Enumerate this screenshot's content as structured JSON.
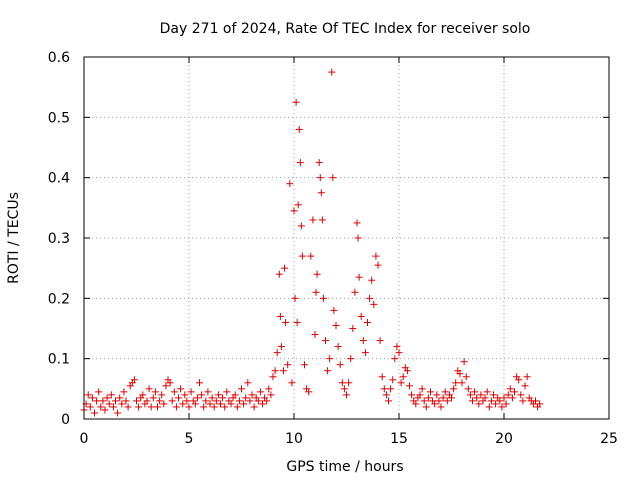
{
  "chart_data": {
    "type": "scatter",
    "title": "Day 271 of 2024, Rate Of TEC Index for receiver solo",
    "xlabel": "GPS time / hours",
    "ylabel": "ROTI / TECUs",
    "xlim": [
      0,
      25
    ],
    "ylim": [
      0,
      0.6
    ],
    "xticks": [
      0,
      5,
      10,
      15,
      20,
      25
    ],
    "yticks": [
      0,
      0.1,
      0.2,
      0.3,
      0.4,
      0.5,
      0.6
    ],
    "ytick_labels": [
      "0",
      "0.1",
      "0.2",
      "0.3",
      "0.4",
      "0.5",
      "0.6"
    ],
    "grid": true,
    "marker": "plus",
    "colors": {
      "series": "#e00000",
      "grid": "#a0a0a0",
      "axes": "#000000"
    },
    "series": [
      {
        "points": [
          [
            0.0,
            0.015
          ],
          [
            0.1,
            0.025
          ],
          [
            0.2,
            0.04
          ],
          [
            0.3,
            0.02
          ],
          [
            0.4,
            0.035
          ],
          [
            0.5,
            0.01
          ],
          [
            0.6,
            0.03
          ],
          [
            0.7,
            0.045
          ],
          [
            0.8,
            0.02
          ],
          [
            0.9,
            0.03
          ],
          [
            1.0,
            0.015
          ],
          [
            1.1,
            0.035
          ],
          [
            1.2,
            0.025
          ],
          [
            1.3,
            0.04
          ],
          [
            1.4,
            0.02
          ],
          [
            1.5,
            0.03
          ],
          [
            1.6,
            0.01
          ],
          [
            1.7,
            0.035
          ],
          [
            1.8,
            0.025
          ],
          [
            1.9,
            0.045
          ],
          [
            2.0,
            0.03
          ],
          [
            2.1,
            0.02
          ],
          [
            2.2,
            0.055
          ],
          [
            2.3,
            0.06
          ],
          [
            2.4,
            0.065
          ],
          [
            2.5,
            0.03
          ],
          [
            2.6,
            0.02
          ],
          [
            2.7,
            0.035
          ],
          [
            2.8,
            0.04
          ],
          [
            2.9,
            0.025
          ],
          [
            3.0,
            0.03
          ],
          [
            3.1,
            0.05
          ],
          [
            3.2,
            0.02
          ],
          [
            3.3,
            0.035
          ],
          [
            3.4,
            0.045
          ],
          [
            3.5,
            0.02
          ],
          [
            3.6,
            0.03
          ],
          [
            3.7,
            0.04
          ],
          [
            3.8,
            0.025
          ],
          [
            3.9,
            0.055
          ],
          [
            4.0,
            0.065
          ],
          [
            4.1,
            0.06
          ],
          [
            4.2,
            0.03
          ],
          [
            4.3,
            0.045
          ],
          [
            4.4,
            0.02
          ],
          [
            4.5,
            0.035
          ],
          [
            4.6,
            0.05
          ],
          [
            4.7,
            0.025
          ],
          [
            4.8,
            0.04
          ],
          [
            4.9,
            0.03
          ],
          [
            5.0,
            0.02
          ],
          [
            5.1,
            0.045
          ],
          [
            5.2,
            0.03
          ],
          [
            5.3,
            0.025
          ],
          [
            5.4,
            0.035
          ],
          [
            5.5,
            0.06
          ],
          [
            5.6,
            0.04
          ],
          [
            5.7,
            0.02
          ],
          [
            5.8,
            0.03
          ],
          [
            5.9,
            0.045
          ],
          [
            6.0,
            0.025
          ],
          [
            6.1,
            0.035
          ],
          [
            6.2,
            0.02
          ],
          [
            6.3,
            0.03
          ],
          [
            6.4,
            0.04
          ],
          [
            6.5,
            0.025
          ],
          [
            6.6,
            0.035
          ],
          [
            6.7,
            0.02
          ],
          [
            6.8,
            0.045
          ],
          [
            6.9,
            0.03
          ],
          [
            7.0,
            0.025
          ],
          [
            7.1,
            0.035
          ],
          [
            7.2,
            0.04
          ],
          [
            7.3,
            0.02
          ],
          [
            7.4,
            0.03
          ],
          [
            7.5,
            0.05
          ],
          [
            7.6,
            0.025
          ],
          [
            7.7,
            0.035
          ],
          [
            7.8,
            0.06
          ],
          [
            7.9,
            0.03
          ],
          [
            8.0,
            0.04
          ],
          [
            8.1,
            0.02
          ],
          [
            8.2,
            0.035
          ],
          [
            8.3,
            0.03
          ],
          [
            8.4,
            0.045
          ],
          [
            8.5,
            0.025
          ],
          [
            8.6,
            0.035
          ],
          [
            8.7,
            0.03
          ],
          [
            8.8,
            0.05
          ],
          [
            8.9,
            0.04
          ],
          [
            9.0,
            0.07
          ],
          [
            9.1,
            0.08
          ],
          [
            9.2,
            0.11
          ],
          [
            9.3,
            0.24
          ],
          [
            9.35,
            0.17
          ],
          [
            9.4,
            0.12
          ],
          [
            9.5,
            0.08
          ],
          [
            9.55,
            0.25
          ],
          [
            9.6,
            0.16
          ],
          [
            9.7,
            0.09
          ],
          [
            9.8,
            0.39
          ],
          [
            9.9,
            0.06
          ],
          [
            10.0,
            0.345
          ],
          [
            10.05,
            0.2
          ],
          [
            10.1,
            0.525
          ],
          [
            10.15,
            0.16
          ],
          [
            10.2,
            0.355
          ],
          [
            10.25,
            0.48
          ],
          [
            10.3,
            0.425
          ],
          [
            10.35,
            0.32
          ],
          [
            10.4,
            0.27
          ],
          [
            10.5,
            0.09
          ],
          [
            10.6,
            0.05
          ],
          [
            10.7,
            0.045
          ],
          [
            10.8,
            0.27
          ],
          [
            10.9,
            0.33
          ],
          [
            11.0,
            0.14
          ],
          [
            11.05,
            0.21
          ],
          [
            11.1,
            0.24
          ],
          [
            11.2,
            0.425
          ],
          [
            11.25,
            0.4
          ],
          [
            11.3,
            0.375
          ],
          [
            11.35,
            0.33
          ],
          [
            11.4,
            0.2
          ],
          [
            11.5,
            0.13
          ],
          [
            11.6,
            0.08
          ],
          [
            11.7,
            0.1
          ],
          [
            11.8,
            0.575
          ],
          [
            11.85,
            0.4
          ],
          [
            11.9,
            0.18
          ],
          [
            12.0,
            0.155
          ],
          [
            12.1,
            0.12
          ],
          [
            12.2,
            0.09
          ],
          [
            12.3,
            0.06
          ],
          [
            12.4,
            0.05
          ],
          [
            12.5,
            0.04
          ],
          [
            12.6,
            0.06
          ],
          [
            12.7,
            0.1
          ],
          [
            12.8,
            0.15
          ],
          [
            12.9,
            0.21
          ],
          [
            13.0,
            0.325
          ],
          [
            13.05,
            0.3
          ],
          [
            13.1,
            0.235
          ],
          [
            13.2,
            0.17
          ],
          [
            13.3,
            0.13
          ],
          [
            13.4,
            0.11
          ],
          [
            13.5,
            0.16
          ],
          [
            13.6,
            0.2
          ],
          [
            13.7,
            0.23
          ],
          [
            13.8,
            0.19
          ],
          [
            13.9,
            0.27
          ],
          [
            14.0,
            0.255
          ],
          [
            14.1,
            0.13
          ],
          [
            14.2,
            0.07
          ],
          [
            14.3,
            0.05
          ],
          [
            14.4,
            0.04
          ],
          [
            14.5,
            0.03
          ],
          [
            14.6,
            0.05
          ],
          [
            14.7,
            0.065
          ],
          [
            14.8,
            0.1
          ],
          [
            14.9,
            0.12
          ],
          [
            15.0,
            0.11
          ],
          [
            15.1,
            0.06
          ],
          [
            15.2,
            0.07
          ],
          [
            15.3,
            0.085
          ],
          [
            15.4,
            0.08
          ],
          [
            15.5,
            0.055
          ],
          [
            15.6,
            0.04
          ],
          [
            15.7,
            0.03
          ],
          [
            15.8,
            0.025
          ],
          [
            15.9,
            0.035
          ],
          [
            16.0,
            0.04
          ],
          [
            16.1,
            0.05
          ],
          [
            16.2,
            0.03
          ],
          [
            16.3,
            0.02
          ],
          [
            16.4,
            0.035
          ],
          [
            16.5,
            0.045
          ],
          [
            16.6,
            0.03
          ],
          [
            16.7,
            0.025
          ],
          [
            16.8,
            0.04
          ],
          [
            16.9,
            0.03
          ],
          [
            17.0,
            0.02
          ],
          [
            17.1,
            0.035
          ],
          [
            17.2,
            0.045
          ],
          [
            17.3,
            0.03
          ],
          [
            17.4,
            0.04
          ],
          [
            17.5,
            0.035
          ],
          [
            17.6,
            0.05
          ],
          [
            17.7,
            0.06
          ],
          [
            17.8,
            0.08
          ],
          [
            17.9,
            0.075
          ],
          [
            18.0,
            0.06
          ],
          [
            18.1,
            0.095
          ],
          [
            18.2,
            0.07
          ],
          [
            18.3,
            0.05
          ],
          [
            18.4,
            0.04
          ],
          [
            18.5,
            0.03
          ],
          [
            18.6,
            0.045
          ],
          [
            18.7,
            0.035
          ],
          [
            18.8,
            0.025
          ],
          [
            18.9,
            0.04
          ],
          [
            19.0,
            0.03
          ],
          [
            19.1,
            0.035
          ],
          [
            19.2,
            0.045
          ],
          [
            19.3,
            0.02
          ],
          [
            19.4,
            0.03
          ],
          [
            19.5,
            0.04
          ],
          [
            19.6,
            0.025
          ],
          [
            19.7,
            0.035
          ],
          [
            19.8,
            0.03
          ],
          [
            19.9,
            0.02
          ],
          [
            20.0,
            0.035
          ],
          [
            20.1,
            0.025
          ],
          [
            20.2,
            0.04
          ],
          [
            20.3,
            0.05
          ],
          [
            20.4,
            0.035
          ],
          [
            20.5,
            0.045
          ],
          [
            20.6,
            0.07
          ],
          [
            20.7,
            0.065
          ],
          [
            20.8,
            0.04
          ],
          [
            20.9,
            0.03
          ],
          [
            21.0,
            0.055
          ],
          [
            21.1,
            0.07
          ],
          [
            21.2,
            0.035
          ],
          [
            21.3,
            0.03
          ],
          [
            21.4,
            0.025
          ],
          [
            21.5,
            0.03
          ],
          [
            21.6,
            0.02
          ],
          [
            21.7,
            0.025
          ]
        ]
      }
    ]
  }
}
